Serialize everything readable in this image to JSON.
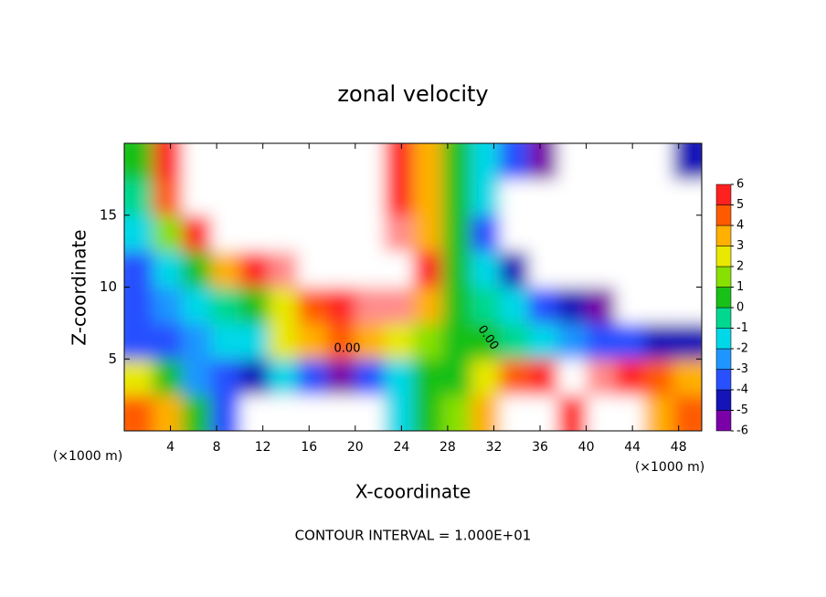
{
  "chart_data": {
    "type": "heatmap",
    "title": "zonal velocity",
    "x_label": "X-coordinate",
    "y_label": "Z-coordinate",
    "x_unit": "(×1000 m)",
    "y_unit": "(×1000 m)",
    "footer": "CONTOUR INTERVAL = 1.000E+01",
    "contour_labels": [
      "0.00",
      "0.00"
    ],
    "xlim": [
      0,
      50
    ],
    "ylim": [
      0,
      20
    ],
    "xticks": [
      4,
      8,
      12,
      16,
      20,
      24,
      28,
      32,
      36,
      40,
      44,
      48
    ],
    "yticks": [
      5,
      10,
      15
    ],
    "x": [
      1.25,
      3.75,
      6.25,
      8.75,
      11.25,
      13.75,
      16.25,
      18.75,
      21.25,
      23.75,
      26.25,
      28.75,
      31.25,
      33.75,
      36.25,
      38.75,
      41.25,
      43.75,
      46.25,
      48.75
    ],
    "y": [
      1.25,
      3.75,
      6.25,
      8.75,
      11.25,
      13.75,
      16.25,
      18.75
    ],
    "z": [
      [
        4,
        3,
        0,
        -4,
        -7,
        -7,
        -7,
        -7,
        -7,
        -2,
        0,
        1,
        3,
        7,
        7,
        5,
        7,
        7,
        3,
        4
      ],
      [
        2,
        0,
        -3,
        -4,
        -5,
        -2,
        -4,
        -6,
        -4,
        -2,
        0,
        0,
        2,
        4,
        5,
        7,
        6,
        5,
        4,
        3
      ],
      [
        -4,
        -4,
        -3,
        -2,
        -2,
        2,
        3,
        4,
        3,
        2,
        1,
        0,
        0,
        -1,
        -2,
        -3,
        -4,
        -4,
        -5,
        -5
      ],
      [
        -4,
        -3,
        -2,
        -1,
        0,
        2,
        4,
        5,
        6,
        6,
        3,
        0,
        -1,
        -2,
        -4,
        -5,
        -6,
        -7,
        -7,
        -7
      ],
      [
        -4,
        -2,
        0,
        3,
        5,
        6,
        7,
        7,
        7,
        7,
        5,
        0,
        -2,
        -5,
        -7,
        -8,
        -8,
        -8,
        -8,
        -8
      ],
      [
        -2,
        1,
        5,
        7,
        8,
        8,
        8,
        8,
        7,
        6,
        3,
        0,
        -4,
        -7,
        -8,
        -8,
        -8,
        -8,
        -8,
        -8
      ],
      [
        -1,
        4,
        7,
        8,
        8,
        8,
        8,
        8,
        7,
        5,
        3,
        0,
        -2,
        -7,
        -8,
        -8,
        -8,
        -8,
        -8,
        -8
      ],
      [
        0,
        5,
        8,
        8,
        8,
        8,
        8,
        8,
        8,
        5,
        3,
        0,
        -2,
        -4,
        -6,
        -8,
        -8,
        -8,
        -8,
        -5
      ]
    ],
    "levels": [
      -6,
      -5,
      -4,
      -3,
      -2,
      -1,
      0,
      1,
      2,
      3,
      4,
      5,
      6
    ],
    "colors": [
      "#7a00a8",
      "#1414b8",
      "#2850ff",
      "#1e96ff",
      "#00d8e8",
      "#00d890",
      "#18c018",
      "#88e000",
      "#e8e800",
      "#ffb000",
      "#ff5a00",
      "#ff2020",
      "#ff8c8c"
    ]
  }
}
